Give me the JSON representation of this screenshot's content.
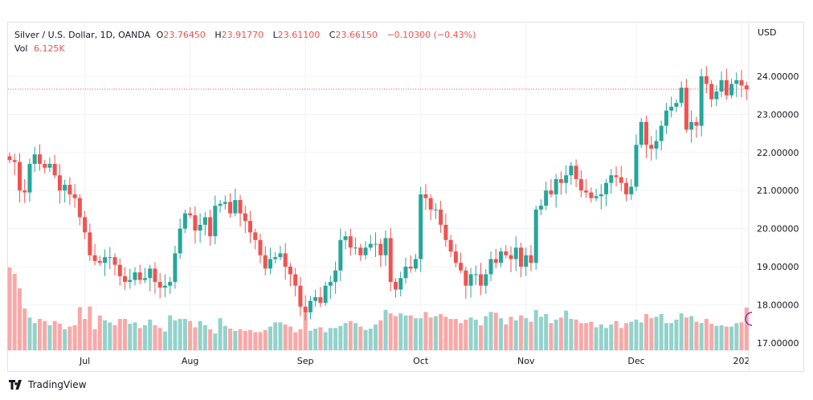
{
  "header": {
    "symbol": "Silver / U.S. Dollar, 1D, OANDA",
    "o_label": "O",
    "o": "23.76450",
    "h_label": "H",
    "h": "23.91770",
    "l_label": "L",
    "l": "23.61100",
    "c_label": "C",
    "c": "23.66150",
    "change": "−0.10300 (−0.43%)",
    "vol_label": "Vol",
    "vol": "6.125K"
  },
  "footer": {
    "brand": "TradingView"
  },
  "colors": {
    "up": "#26a69a",
    "down": "#ef5350",
    "vol_up": "#93d2cb",
    "vol_down": "#f7a9a7",
    "grid": "#f0f3fa"
  },
  "chart_data": {
    "type": "candlestick",
    "title": "Silver / U.S. Dollar, 1D, OANDA",
    "currency_label": "USD",
    "ylim": [
      16.98,
      24.7
    ],
    "y_ticks": [
      "24.00000",
      "23.00000",
      "22.00000",
      "21.00000",
      "20.00000",
      "19.00000",
      "18.00000",
      "17.00000"
    ],
    "y_tick_values": [
      24,
      23,
      22,
      21,
      20,
      19,
      18,
      17
    ],
    "x_ticks": [
      {
        "label": "Jul",
        "bar": 15
      },
      {
        "label": "Aug",
        "bar": 36
      },
      {
        "label": "Sep",
        "bar": 59
      },
      {
        "label": "Oct",
        "bar": 82
      },
      {
        "label": "Nov",
        "bar": 103
      },
      {
        "label": "Dec",
        "bar": 125
      },
      {
        "label": "202",
        "bar": 146
      }
    ],
    "last_price": 23.6615,
    "first_open": 21.9,
    "closes": [
      21.8,
      21.75,
      21.0,
      20.95,
      21.7,
      21.95,
      21.7,
      21.6,
      21.7,
      21.4,
      21.0,
      21.15,
      20.9,
      20.8,
      20.3,
      19.9,
      19.3,
      19.15,
      19.1,
      19.25,
      19.25,
      19.05,
      18.75,
      18.6,
      18.65,
      18.85,
      18.65,
      18.7,
      18.95,
      18.6,
      18.45,
      18.5,
      18.6,
      19.35,
      20.0,
      20.4,
      20.35,
      19.95,
      20.1,
      20.3,
      19.8,
      20.6,
      20.65,
      20.7,
      20.4,
      20.75,
      20.4,
      20.2,
      19.9,
      19.7,
      19.3,
      18.95,
      19.2,
      19.25,
      19.35,
      19.0,
      18.8,
      18.5,
      17.95,
      17.8,
      18.1,
      18.2,
      18.05,
      18.5,
      18.6,
      18.9,
      19.7,
      19.8,
      19.5,
      19.5,
      19.3,
      19.5,
      19.6,
      19.6,
      19.3,
      19.75,
      18.6,
      18.4,
      18.7,
      19.0,
      18.95,
      19.2,
      20.9,
      20.8,
      20.5,
      20.5,
      20.1,
      19.7,
      19.4,
      19.1,
      18.9,
      18.5,
      18.8,
      18.8,
      18.5,
      18.8,
      19.2,
      19.1,
      19.4,
      19.3,
      19.2,
      19.5,
      19.0,
      19.3,
      19.1,
      20.5,
      20.6,
      21.0,
      20.9,
      21.3,
      21.2,
      21.4,
      21.65,
      21.3,
      21.0,
      20.95,
      20.8,
      20.85,
      20.9,
      21.2,
      21.4,
      21.35,
      21.2,
      20.9,
      21.1,
      22.2,
      22.8,
      22.2,
      22.1,
      22.3,
      22.7,
      23.1,
      23.2,
      23.3,
      23.7,
      22.6,
      22.8,
      22.7,
      24.0,
      23.8,
      23.4,
      23.6,
      23.9,
      23.5,
      23.8,
      23.9,
      23.76,
      23.66
    ],
    "volume_k": [
      11.9,
      11.0,
      8.9,
      6.0,
      4.7,
      3.9,
      4.5,
      4.2,
      3.6,
      4.2,
      3.8,
      3.0,
      3.4,
      3.6,
      6.2,
      4.5,
      6.3,
      3.0,
      5.0,
      4.3,
      4.0,
      3.6,
      4.5,
      4.5,
      3.8,
      4.0,
      3.2,
      3.6,
      4.4,
      3.6,
      3.2,
      2.7,
      5.0,
      4.3,
      4.5,
      4.5,
      4.2,
      3.3,
      4.2,
      3.6,
      3.0,
      2.4,
      4.6,
      3.5,
      3.1,
      2.8,
      3.0,
      2.8,
      2.9,
      2.6,
      2.6,
      2.9,
      3.4,
      4.0,
      4.0,
      3.7,
      3.4,
      2.6,
      3.0,
      5.4,
      2.8,
      3.1,
      3.3,
      2.6,
      3.2,
      3.2,
      3.5,
      3.9,
      4.2,
      3.9,
      3.4,
      2.9,
      3.1,
      3.7,
      4.3,
      5.8,
      5.3,
      4.9,
      5.3,
      5.0,
      5.0,
      4.6,
      4.6,
      5.5,
      4.7,
      4.9,
      5.2,
      4.8,
      4.5,
      4.5,
      3.9,
      4.4,
      4.7,
      4.4,
      3.6,
      4.9,
      5.5,
      5.4,
      4.6,
      3.7,
      4.8,
      4.3,
      5.0,
      4.6,
      4.1,
      5.8,
      4.8,
      5.2,
      3.9,
      4.4,
      4.7,
      5.7,
      4.5,
      4.4,
      3.9,
      3.9,
      4.1,
      3.3,
      3.7,
      3.2,
      3.7,
      4.2,
      3.2,
      3.9,
      4.1,
      4.4,
      4.0,
      5.2,
      4.6,
      4.8,
      5.2,
      3.9,
      3.9,
      4.4,
      5.3,
      4.7,
      4.9,
      4.1,
      3.9,
      4.5,
      3.8,
      3.5,
      3.6,
      3.4,
      3.4,
      3.9,
      4.0,
      6.125
    ],
    "volume_label": "Vol"
  }
}
